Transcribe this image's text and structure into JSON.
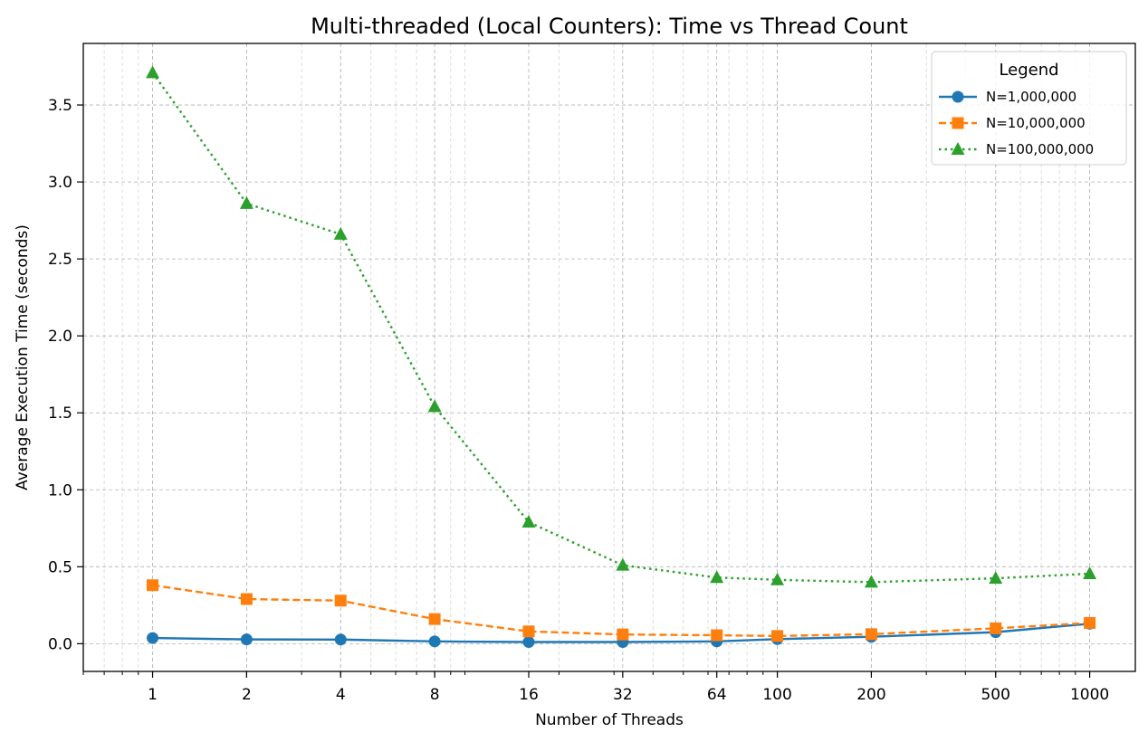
{
  "chart_data": {
    "type": "line",
    "title": "Multi-threaded (Local Counters): Time vs Thread Count",
    "xlabel": "Number of Threads",
    "ylabel": "Average Execution Time (seconds)",
    "xscale": "log",
    "x": [
      1,
      2,
      4,
      8,
      16,
      32,
      64,
      100,
      200,
      500,
      1000
    ],
    "x_tick_labels": [
      "1",
      "2",
      "4",
      "8",
      "16",
      "32",
      "64",
      "100",
      "200",
      "500",
      "1000"
    ],
    "xlim": [
      0.6,
      1400
    ],
    "ylim": [
      -0.18,
      3.9
    ],
    "y_ticks": [
      0.0,
      0.5,
      1.0,
      1.5,
      2.0,
      2.5,
      3.0,
      3.5
    ],
    "y_tick_labels": [
      "0.0",
      "0.5",
      "1.0",
      "1.5",
      "2.0",
      "2.5",
      "3.0",
      "3.5"
    ],
    "grid": true,
    "legend": {
      "title": "Legend",
      "placement": "top-right"
    },
    "series": [
      {
        "name": "N=1,000,000",
        "color": "#1f77b4",
        "line_style": "solid",
        "marker": "circle",
        "values": [
          0.037,
          0.028,
          0.027,
          0.015,
          0.011,
          0.011,
          0.015,
          0.03,
          0.045,
          0.075,
          0.13
        ]
      },
      {
        "name": "N=10,000,000",
        "color": "#ff7f0e",
        "line_style": "dashed",
        "marker": "square",
        "values": [
          0.38,
          0.29,
          0.28,
          0.16,
          0.08,
          0.06,
          0.055,
          0.05,
          0.062,
          0.1,
          0.135
        ]
      },
      {
        "name": "N=100,000,000",
        "color": "#2ca02c",
        "line_style": "dotted",
        "marker": "triangle",
        "values": [
          3.71,
          2.86,
          2.66,
          1.54,
          0.79,
          0.51,
          0.43,
          0.415,
          0.4,
          0.425,
          0.455
        ]
      }
    ]
  }
}
